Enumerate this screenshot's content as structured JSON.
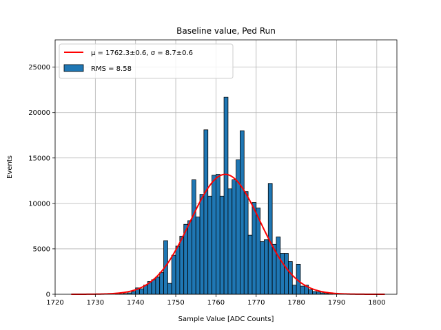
{
  "chart_data": {
    "type": "bar",
    "title": "Baseline value, Ped Run",
    "xlabel": "Sample Value [ADC Counts]",
    "ylabel": "Events",
    "xlim": [
      1720,
      1805
    ],
    "ylim": [
      0,
      28000
    ],
    "xticks": [
      1720,
      1730,
      1740,
      1750,
      1760,
      1770,
      1780,
      1790,
      1800
    ],
    "yticks": [
      0,
      5000,
      10000,
      15000,
      20000,
      25000
    ],
    "grid": true,
    "legend_position": "top-left",
    "bin_width": 1,
    "bars": {
      "name": "RMS = 8.58",
      "color": "#1f77b4",
      "edgecolor": "#000000",
      "x": [
        1735,
        1736,
        1737,
        1738,
        1739,
        1740,
        1741,
        1742,
        1743,
        1744,
        1745,
        1746,
        1747,
        1748,
        1749,
        1750,
        1751,
        1752,
        1753,
        1754,
        1755,
        1756,
        1757,
        1758,
        1759,
        1760,
        1761,
        1762,
        1763,
        1764,
        1765,
        1766,
        1767,
        1768,
        1769,
        1770,
        1771,
        1772,
        1773,
        1774,
        1775,
        1776,
        1777,
        1778,
        1779,
        1780,
        1781,
        1782,
        1783,
        1784,
        1785,
        1786,
        1787,
        1788
      ],
      "values": [
        20,
        40,
        80,
        150,
        300,
        700,
        600,
        1000,
        1400,
        1600,
        1900,
        2400,
        5900,
        1200,
        4300,
        5300,
        6400,
        7700,
        8100,
        12600,
        8500,
        11000,
        18100,
        10800,
        13100,
        13200,
        10800,
        21700,
        11600,
        12600,
        14800,
        18000,
        11300,
        6500,
        10100,
        9500,
        5800,
        6000,
        12200,
        5500,
        6300,
        4500,
        4500,
        3600,
        1000,
        3300,
        900,
        1000,
        500,
        300,
        250,
        150,
        80,
        30
      ]
    },
    "fit": {
      "name": "$\\mu = 1762.3$±0.6, $\\sigma = 8.7$±0.6",
      "legend_mu": "μ = 1762.3±0.6, ",
      "legend_sigma": "σ = 8.7±0.6",
      "type": "gaussian",
      "amplitude": 13200,
      "mu": 1762.3,
      "sigma": 8.7,
      "x_range": [
        1724,
        1802
      ],
      "color": "#ff0000"
    },
    "legend": {
      "fit_label_mu": "μ = 1762.3±0.6, ",
      "fit_label_sigma": "σ = 8.7±0.6",
      "bars_label": "RMS = 8.58"
    }
  }
}
